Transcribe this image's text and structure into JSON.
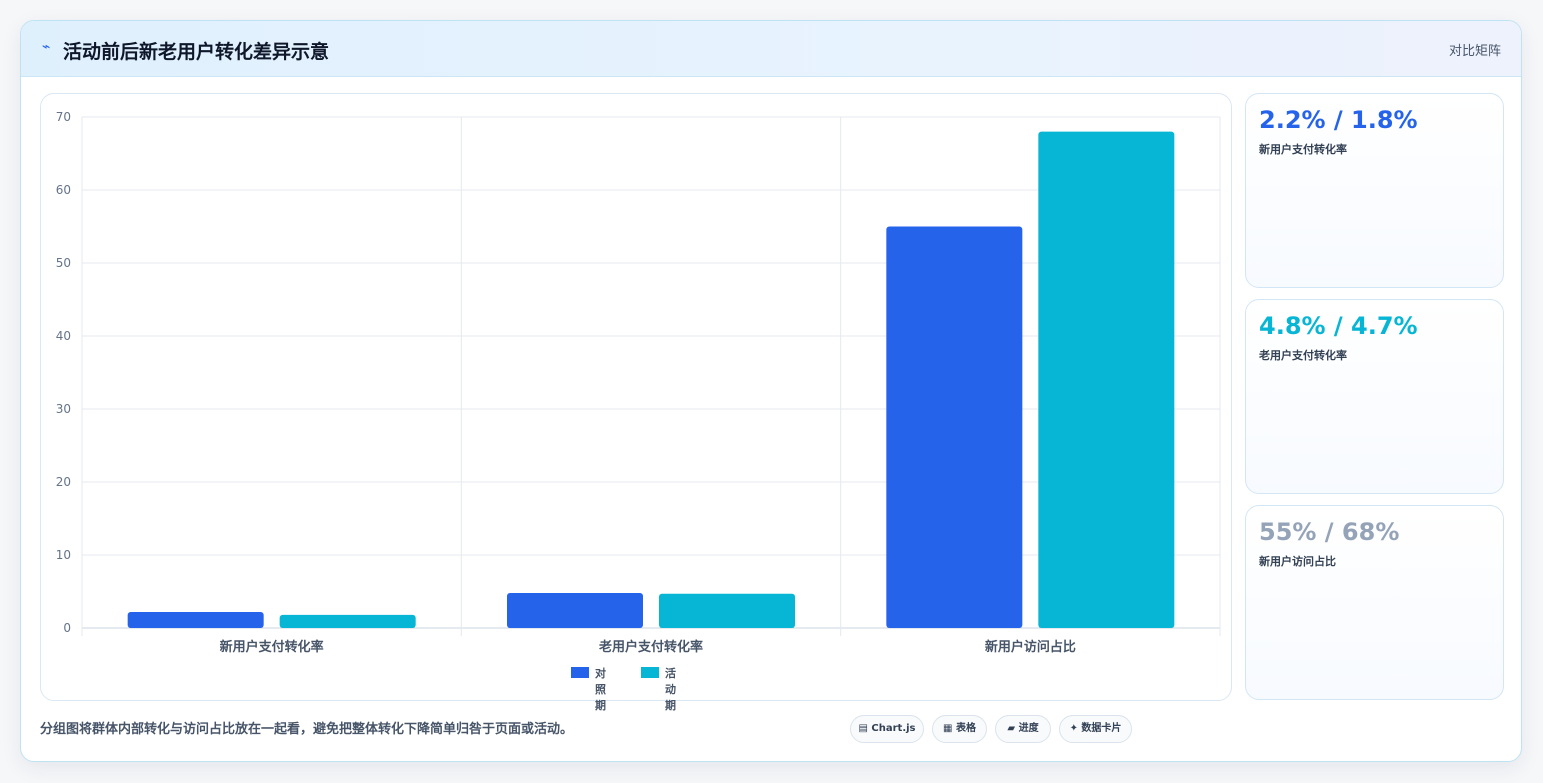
{
  "header": {
    "icon": "sparkline-icon",
    "title": "活动前后新老用户转化差异示意",
    "right_label": "对比矩阵"
  },
  "colors": {
    "control": "#2563eb",
    "activity": "#06b6d4",
    "muted": "#94a3b8"
  },
  "chart_data": {
    "type": "bar",
    "categories": [
      "新用户支付转化率",
      "老用户支付转化率",
      "新用户访问占比"
    ],
    "series": [
      {
        "name": "对照期",
        "values": [
          2.2,
          4.8,
          55
        ]
      },
      {
        "name": "活动期",
        "values": [
          1.8,
          4.7,
          68
        ]
      }
    ],
    "ylim": [
      0,
      70
    ],
    "yticks": [
      0,
      10,
      20,
      30,
      40,
      50,
      60,
      70
    ],
    "grid": true,
    "legend": "bottom"
  },
  "stats": [
    {
      "value": "2.2% / 1.8%",
      "label": "新用户支付转化率",
      "color": "#2563eb"
    },
    {
      "value": "4.8% / 4.7%",
      "label": "老用户支付转化率",
      "color": "#06b6d4"
    },
    {
      "value": "55% / 68%",
      "label": "新用户访问占比",
      "color": "#94a3b8"
    }
  ],
  "footer": {
    "note": "分组图将群体内部转化与访问占比放在一起看，避免把整体转化下降简单归咎于页面或活动。",
    "chips": [
      "▤ Chart.js",
      "▦ 表格",
      "▰ 进度",
      "✦ 数据卡片"
    ]
  }
}
